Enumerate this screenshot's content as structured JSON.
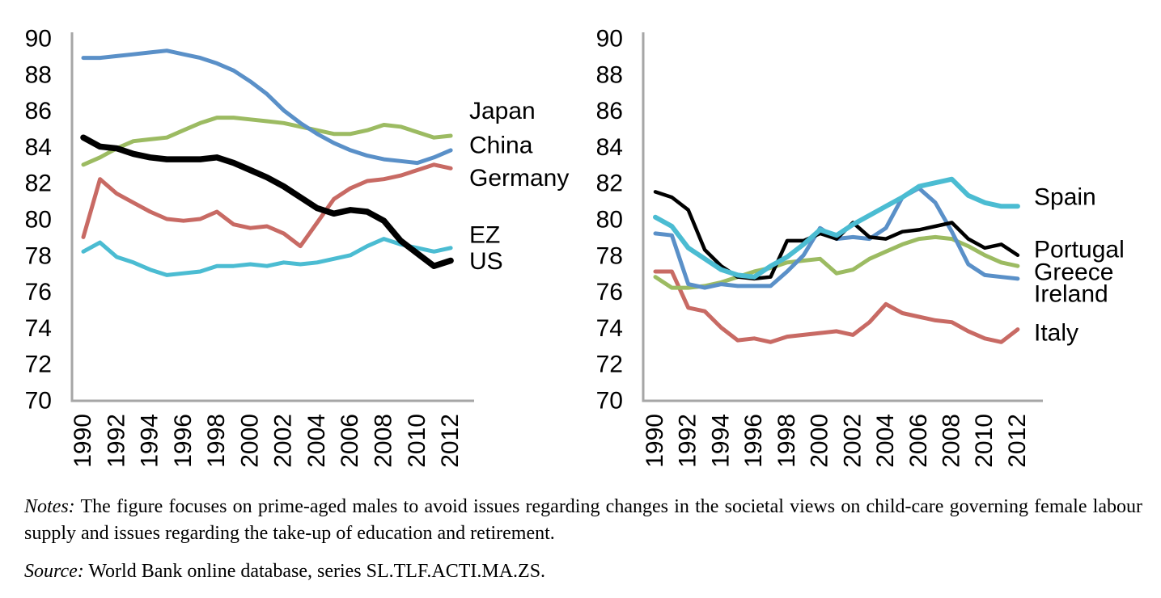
{
  "figure": {
    "notes_label": "Notes:",
    "notes_text": " The figure focuses on prime-aged males to avoid issues regarding changes in the societal views on child-care governing female labour supply and issues regarding the take-up of education and retirement.",
    "source_label": "Source:",
    "source_text": " World Bank online database, series SL.TLF.ACTI.MA.ZS."
  },
  "chart_data": [
    {
      "type": "line",
      "panel": "left",
      "title": "",
      "xlabel": "",
      "ylabel": "",
      "x": [
        1990,
        1991,
        1992,
        1993,
        1994,
        1995,
        1996,
        1997,
        1998,
        1999,
        2000,
        2001,
        2002,
        2003,
        2004,
        2005,
        2006,
        2007,
        2008,
        2009,
        2010,
        2011,
        2012
      ],
      "x_tick_labels": [
        "1990",
        "1992",
        "1994",
        "1996",
        "1998",
        "2000",
        "2002",
        "2004",
        "2006",
        "2008",
        "2010",
        "2012"
      ],
      "ylim": [
        70,
        90
      ],
      "yticks": [
        90,
        88,
        86,
        84,
        82,
        80,
        78,
        76,
        74,
        72,
        70
      ],
      "grid": false,
      "axis_color": "#A6A6A6",
      "text_color": "#000000",
      "legend_position": "right-of-plot",
      "series": [
        {
          "name": "China",
          "color": "#9CBB62",
          "width": 5,
          "label_value": 84.1,
          "values": [
            83.0,
            83.4,
            83.9,
            84.3,
            84.4,
            84.5,
            84.9,
            85.3,
            85.6,
            85.6,
            85.5,
            85.4,
            85.3,
            85.1,
            84.9,
            84.7,
            84.7,
            84.9,
            85.2,
            85.1,
            84.8,
            84.5,
            84.6
          ]
        },
        {
          "name": "Japan",
          "color": "#5A90C8",
          "width": 5,
          "label_value": 86.0,
          "values": [
            88.9,
            88.9,
            89.0,
            89.1,
            89.2,
            89.3,
            89.1,
            88.9,
            88.6,
            88.2,
            87.6,
            86.9,
            86.0,
            85.3,
            84.7,
            84.2,
            83.8,
            83.5,
            83.3,
            83.2,
            83.1,
            83.4,
            83.8
          ]
        },
        {
          "name": "Germany",
          "color": "#C86A64",
          "width": 5,
          "label_value": 82.3,
          "values": [
            79.0,
            82.2,
            81.4,
            80.9,
            80.4,
            80.0,
            79.9,
            80.0,
            80.4,
            79.7,
            79.5,
            79.6,
            79.2,
            78.5,
            79.8,
            81.1,
            81.7,
            82.1,
            82.2,
            82.4,
            82.7,
            83.0,
            82.8
          ]
        },
        {
          "name": "EZ",
          "color": "#4BBCD2",
          "width": 5,
          "label_value": 79.15,
          "values": [
            78.2,
            78.7,
            77.9,
            77.6,
            77.2,
            76.9,
            77.0,
            77.1,
            77.4,
            77.4,
            77.5,
            77.4,
            77.6,
            77.5,
            77.6,
            77.8,
            78.0,
            78.5,
            78.9,
            78.6,
            78.4,
            78.2,
            78.4
          ]
        },
        {
          "name": "US",
          "color": "#000000",
          "width": 7.5,
          "label_value": 77.7,
          "values": [
            84.5,
            84.0,
            83.9,
            83.6,
            83.4,
            83.3,
            83.3,
            83.3,
            83.4,
            83.1,
            82.7,
            82.3,
            81.8,
            81.2,
            80.6,
            80.3,
            80.5,
            80.4,
            79.9,
            78.8,
            78.1,
            77.4,
            77.7
          ]
        }
      ]
    },
    {
      "type": "line",
      "panel": "right",
      "title": "",
      "xlabel": "",
      "ylabel": "",
      "x": [
        1990,
        1991,
        1992,
        1993,
        1994,
        1995,
        1996,
        1997,
        1998,
        1999,
        2000,
        2001,
        2002,
        2003,
        2004,
        2005,
        2006,
        2007,
        2008,
        2009,
        2010,
        2011,
        2012
      ],
      "x_tick_labels": [
        "1990",
        "1992",
        "1994",
        "1996",
        "1998",
        "2000",
        "2002",
        "2004",
        "2006",
        "2008",
        "2010",
        "2012"
      ],
      "ylim": [
        70,
        90
      ],
      "yticks": [
        90,
        88,
        86,
        84,
        82,
        80,
        78,
        76,
        74,
        72,
        70
      ],
      "grid": false,
      "axis_color": "#A6A6A6",
      "text_color": "#000000",
      "legend_position": "right-of-plot",
      "series": [
        {
          "name": "Italy",
          "color": "#C86A64",
          "width": 5,
          "label_value": 73.75,
          "values": [
            77.1,
            77.1,
            75.1,
            74.9,
            74.0,
            73.3,
            73.4,
            73.2,
            73.5,
            73.6,
            73.7,
            73.8,
            73.6,
            74.3,
            75.3,
            74.8,
            74.6,
            74.4,
            74.3,
            73.8,
            73.4,
            73.2,
            73.9
          ]
        },
        {
          "name": "Greece",
          "color": "#9CBB62",
          "width": 5,
          "label_value": 77.1,
          "values": [
            76.8,
            76.2,
            76.2,
            76.3,
            76.5,
            76.8,
            77.1,
            77.3,
            77.6,
            77.7,
            77.8,
            77.0,
            77.2,
            77.8,
            78.2,
            78.6,
            78.9,
            79.0,
            78.9,
            78.5,
            78.0,
            77.6,
            77.4
          ]
        },
        {
          "name": "Ireland",
          "color": "#5A90C8",
          "width": 5,
          "label_value": 75.9,
          "values": [
            79.2,
            79.1,
            76.4,
            76.2,
            76.4,
            76.3,
            76.3,
            76.3,
            77.1,
            78.0,
            79.5,
            78.9,
            79.0,
            78.9,
            79.5,
            81.2,
            81.7,
            80.9,
            79.3,
            77.5,
            76.9,
            76.8,
            76.7
          ]
        },
        {
          "name": "Portugal",
          "color": "#000000",
          "width": 4.5,
          "label_value": 78.35,
          "values": [
            81.5,
            81.2,
            80.5,
            78.3,
            77.4,
            76.8,
            76.7,
            76.8,
            78.8,
            78.8,
            79.2,
            78.9,
            79.8,
            79.0,
            78.9,
            79.3,
            79.4,
            79.6,
            79.8,
            78.9,
            78.4,
            78.6,
            78.0
          ]
        },
        {
          "name": "Spain",
          "color": "#4BBCD2",
          "width": 6,
          "label_value": 81.25,
          "values": [
            80.1,
            79.6,
            78.4,
            77.8,
            77.2,
            76.9,
            76.8,
            77.4,
            77.9,
            78.6,
            79.4,
            79.1,
            79.7,
            80.2,
            80.7,
            81.2,
            81.8,
            82.0,
            82.2,
            81.3,
            80.9,
            80.7,
            80.7
          ]
        }
      ]
    }
  ]
}
